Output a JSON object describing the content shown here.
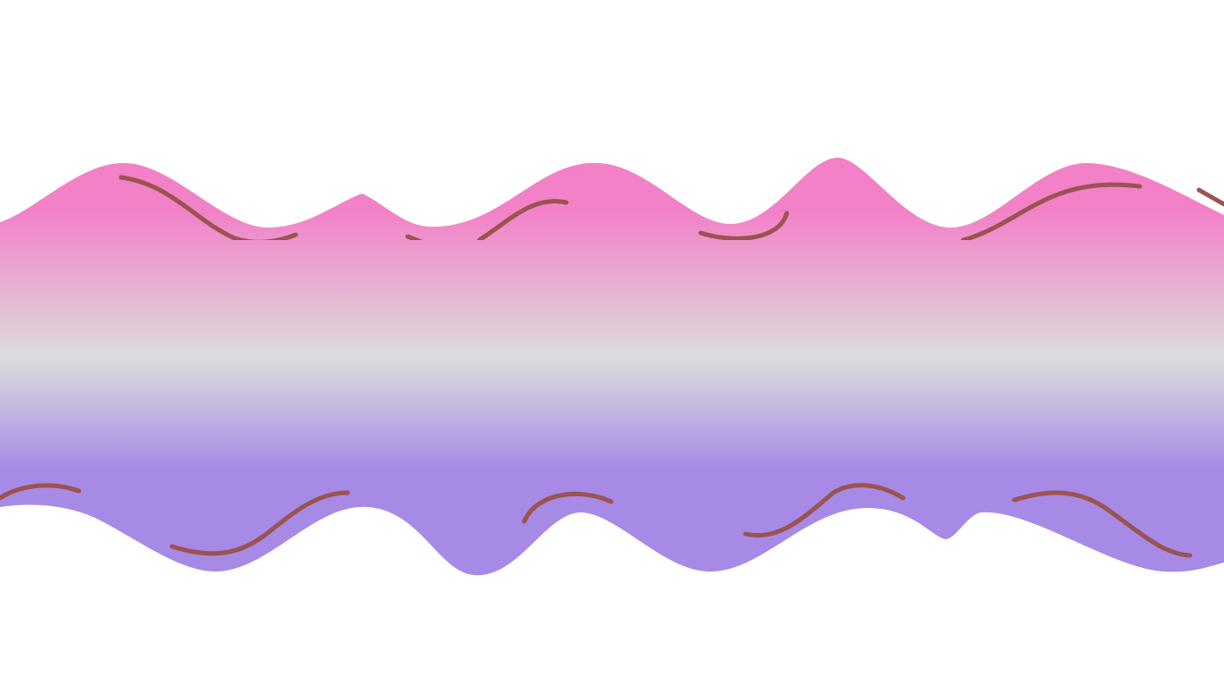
{
  "page": {
    "background": "#ffffff"
  },
  "band": {
    "name": "gradient-wave-band",
    "gradient_stops": [
      {
        "offset": 0.0,
        "color": "#f281c8"
      },
      {
        "offset": 0.12,
        "color": "#f281c8"
      },
      {
        "offset": 0.47,
        "color": "#dcdcdc"
      },
      {
        "offset": 0.74,
        "color": "#a78ae6"
      },
      {
        "offset": 1.0,
        "color": "#a78ae6"
      }
    ]
  },
  "decorative_strokes": {
    "color": "#9b5350",
    "count_top": 6,
    "count_bottom": 6
  }
}
